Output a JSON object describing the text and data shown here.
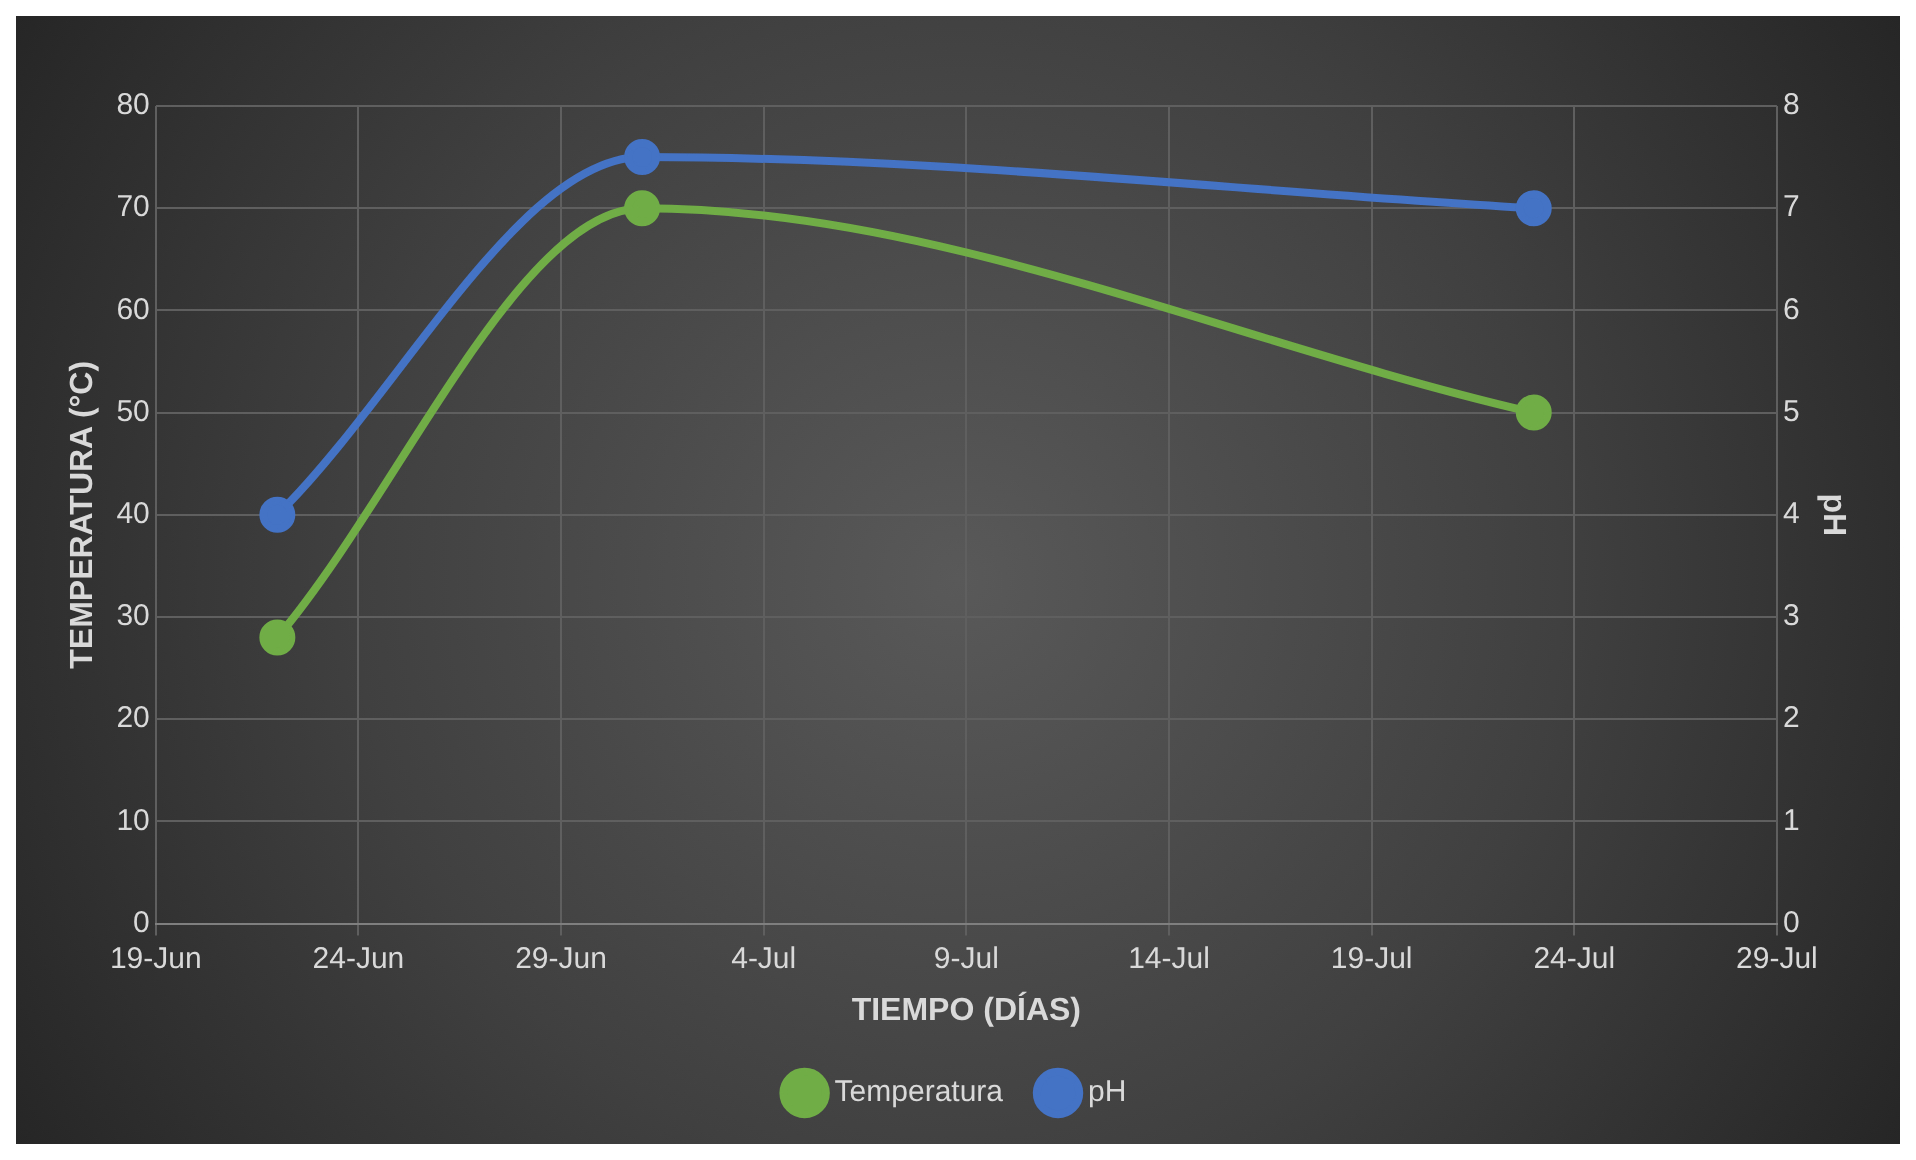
{
  "chart_data": {
    "type": "line",
    "xlabel": "TIEMPO (DÍAS)",
    "ylabel": "TEMPERATURA (°C)",
    "y2label": "pH",
    "x": [
      "--06-22",
      "--07-01",
      "--07-23"
    ],
    "series": [
      {
        "name": "Temperatura",
        "color": "#70ad47",
        "values": [
          28,
          70,
          50
        ]
      },
      {
        "name": "pH",
        "color": "#4472c4",
        "values": [
          4,
          7.5,
          7
        ],
        "axis": "y2"
      }
    ],
    "xlim": [
      "--06-19",
      "--07-29"
    ],
    "xticks": [
      {
        "value": "--06-19",
        "label": "19-Jun"
      },
      {
        "value": "--06-24",
        "label": "24-Jun"
      },
      {
        "value": "--06-29",
        "label": "29-Jun"
      },
      {
        "value": "--07-04",
        "label": "4-Jul"
      },
      {
        "value": "--07-09",
        "label": "9-Jul"
      },
      {
        "value": "--07-14",
        "label": "14-Jul"
      },
      {
        "value": "--07-19",
        "label": "19-Jul"
      },
      {
        "value": "--07-24",
        "label": "24-Jul"
      },
      {
        "value": "--07-29",
        "label": "29-Jul"
      }
    ],
    "ylim": [
      0,
      80
    ],
    "yticks": [
      0,
      10,
      20,
      30,
      40,
      50,
      60,
      70,
      80
    ],
    "y2lim": [
      0,
      8
    ],
    "y2ticks": [
      0,
      1,
      2,
      3,
      4,
      5,
      6,
      7,
      8
    ],
    "grid": true,
    "legend": "bottom",
    "marker": "circle",
    "line_style": "solid"
  }
}
